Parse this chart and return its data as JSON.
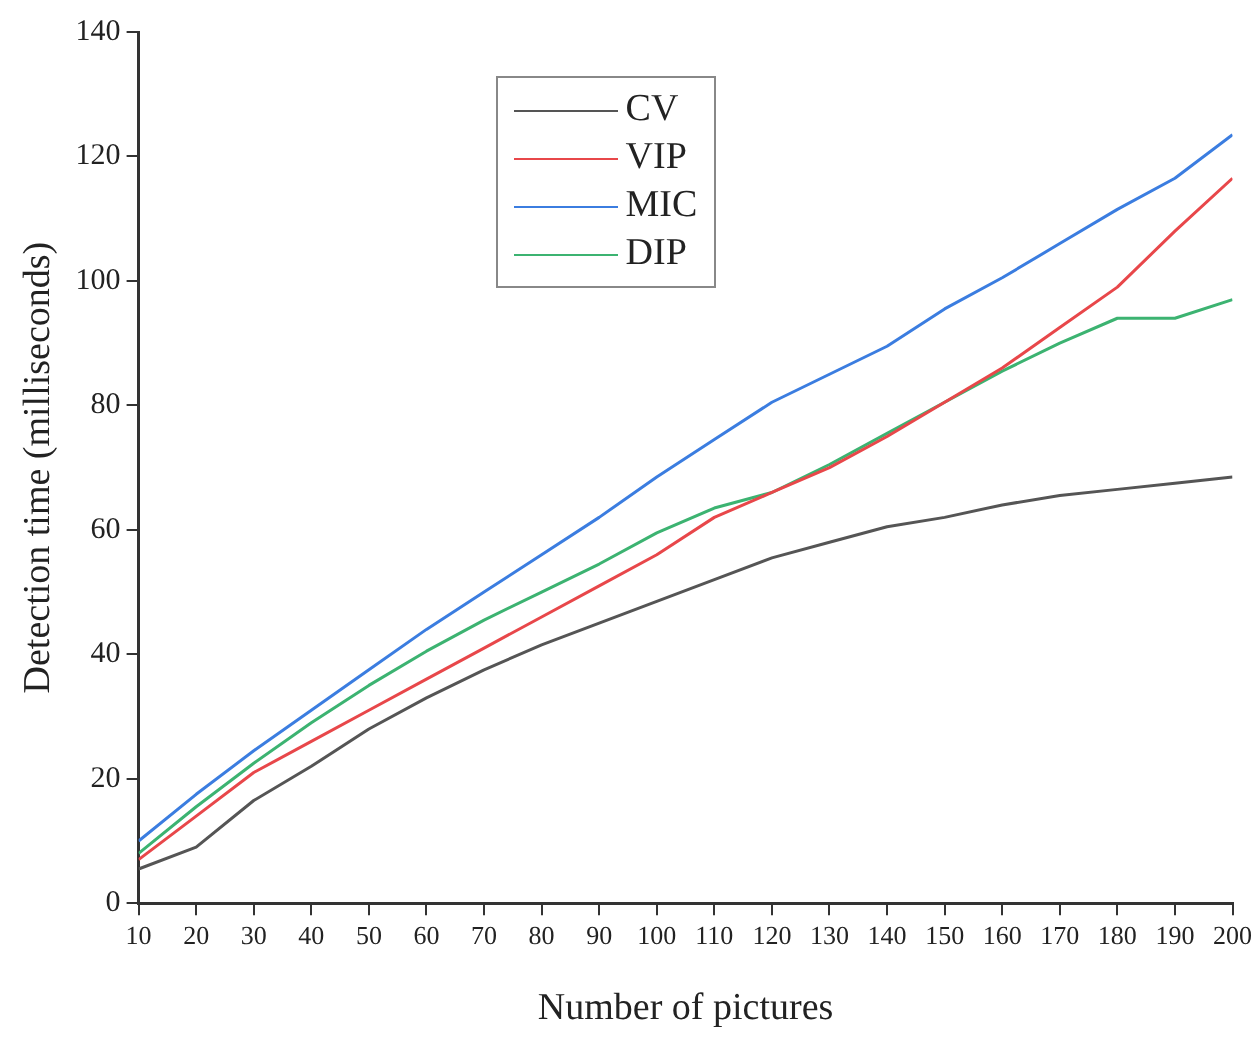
{
  "chart_data": {
    "type": "line",
    "xlabel": "Number of pictures",
    "ylabel": "Detection time (milliseconds)",
    "x": [
      10,
      20,
      30,
      40,
      50,
      60,
      70,
      80,
      90,
      100,
      110,
      120,
      130,
      140,
      150,
      160,
      170,
      180,
      190,
      200
    ],
    "series": [
      {
        "name": "CV",
        "color": "#555555",
        "values": [
          5.5,
          9,
          16.5,
          22,
          28,
          33,
          37.5,
          41.5,
          45,
          48.5,
          52,
          55.5,
          58,
          60.5,
          62,
          64,
          65.5,
          66.5,
          67.5,
          68.5
        ]
      },
      {
        "name": "VIP",
        "color": "#e8474a",
        "values": [
          7,
          14,
          21,
          26,
          31,
          36,
          41,
          46,
          51,
          56,
          62,
          66,
          70,
          75,
          80.5,
          86,
          92.5,
          99,
          108,
          116.5
        ]
      },
      {
        "name": "MIC",
        "color": "#3b7de0",
        "values": [
          10,
          17.5,
          24.5,
          31,
          37.5,
          44,
          50,
          56,
          62,
          68.5,
          74.5,
          80.5,
          85,
          89.5,
          95.5,
          100.5,
          106,
          111.5,
          116.5,
          123.5
        ]
      },
      {
        "name": "DIP",
        "color": "#3cb371",
        "values": [
          8,
          15.5,
          22.5,
          29,
          35,
          40.5,
          45.5,
          50,
          54.5,
          59.5,
          63.5,
          66,
          70.5,
          75.5,
          80.5,
          85.5,
          90,
          94,
          94,
          97
        ]
      }
    ],
    "xlim": [
      10,
      200
    ],
    "xticks": [
      10,
      20,
      30,
      40,
      50,
      60,
      70,
      80,
      90,
      100,
      110,
      120,
      130,
      140,
      150,
      160,
      170,
      180,
      190,
      200
    ],
    "ylim": [
      0,
      140
    ],
    "yticks": [
      0,
      20,
      40,
      60,
      80,
      100,
      120,
      140
    ],
    "grid": false,
    "legend": "top",
    "marker": "none",
    "line_style": "solid"
  }
}
